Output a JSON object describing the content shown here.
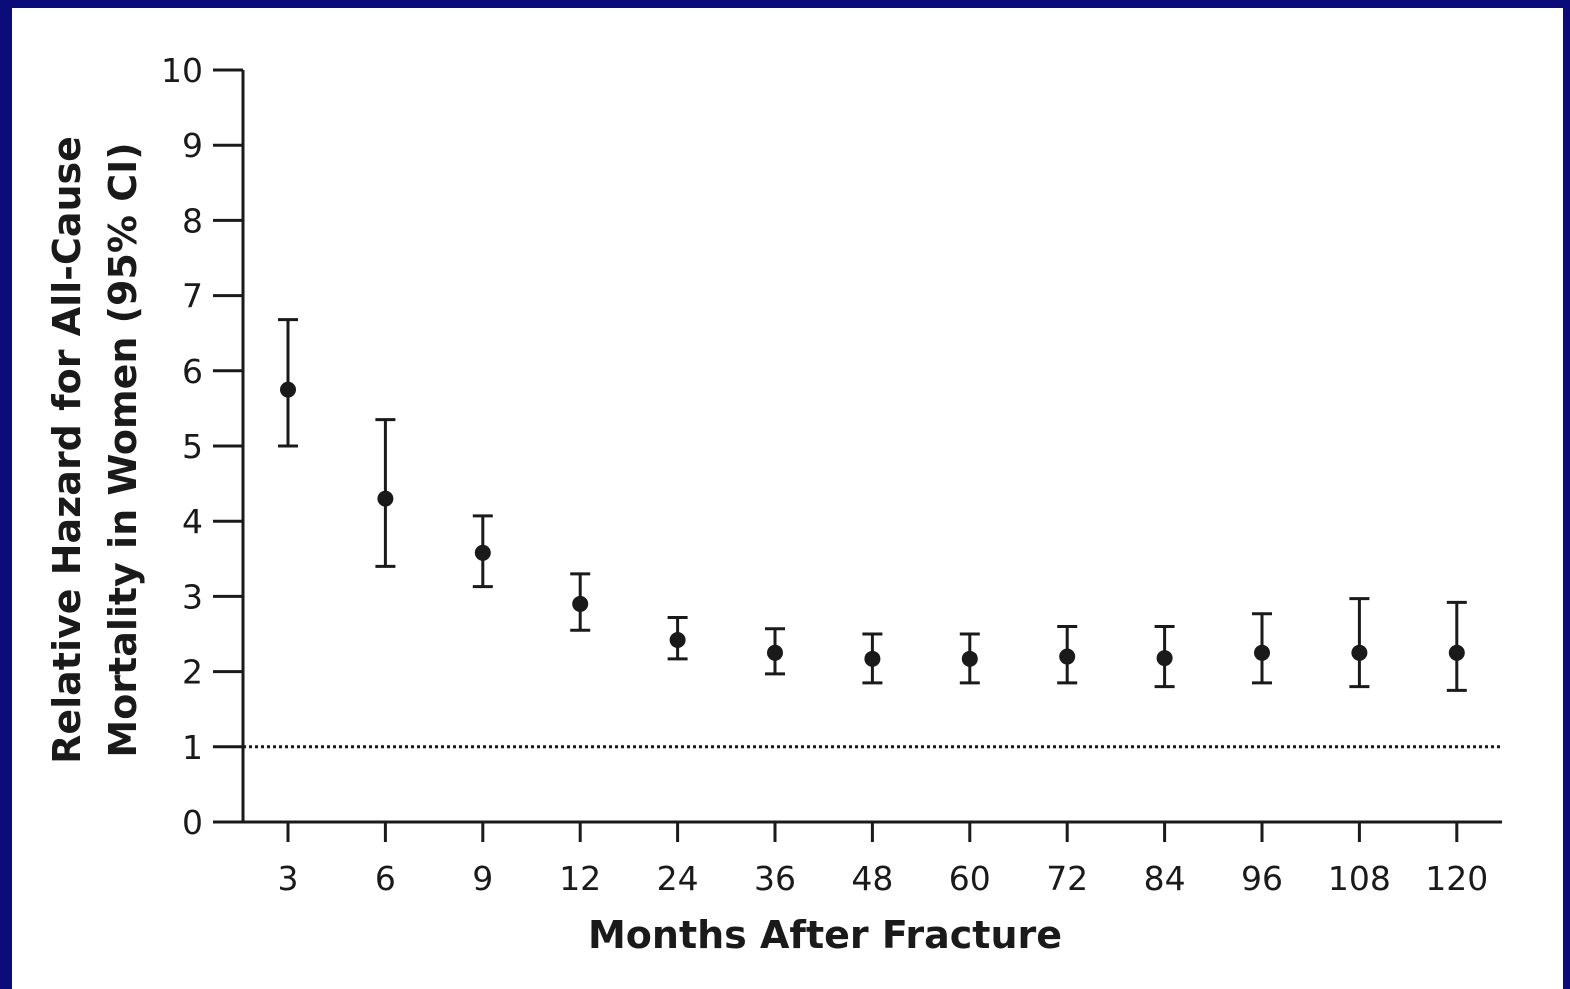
{
  "colors": {
    "frame": "#0b0b7a",
    "panel": "#ffffff",
    "ink": "#1a1a1a"
  },
  "chart_data": {
    "type": "scatter",
    "title": "",
    "xlabel": "Months After Fracture",
    "ylabel_line1": "Relative Hazard for All-Cause",
    "ylabel_line2": "Mortality in Women (95% CI)",
    "categories": [
      "3",
      "6",
      "9",
      "12",
      "24",
      "36",
      "48",
      "60",
      "72",
      "84",
      "96",
      "108",
      "120"
    ],
    "yticks": [
      "0",
      "1",
      "2",
      "3",
      "4",
      "5",
      "6",
      "7",
      "8",
      "9",
      "10"
    ],
    "ylim": [
      0,
      10
    ],
    "grid": false,
    "series": [
      {
        "values": [
          5.75,
          4.3,
          3.58,
          2.9,
          2.42,
          2.25,
          2.17,
          2.17,
          2.2,
          2.18,
          2.25,
          2.25,
          2.25
        ],
        "ci_lower": [
          5.0,
          3.4,
          3.13,
          2.55,
          2.17,
          1.97,
          1.85,
          1.85,
          1.85,
          1.8,
          1.85,
          1.8,
          1.75
        ],
        "ci_upper": [
          6.68,
          5.35,
          4.07,
          3.3,
          2.72,
          2.57,
          2.5,
          2.5,
          2.6,
          2.6,
          2.77,
          2.97,
          2.92
        ]
      }
    ],
    "reference_line": {
      "y": 1,
      "style": "dotted"
    }
  }
}
